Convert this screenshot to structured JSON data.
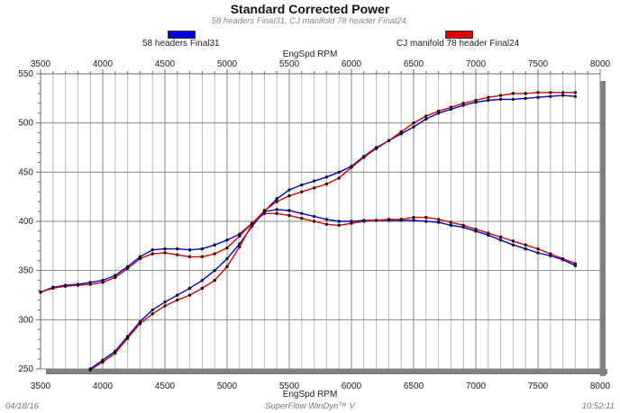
{
  "chart_data": {
    "type": "line",
    "title": "Standard Corrected Power",
    "subtitle": "58 headers Final31, CJ manifold 78 header Final24,",
    "xlabel": "EngSpd RPM",
    "ylabel": "",
    "xlim": [
      3500,
      8000
    ],
    "ylim": [
      250,
      550
    ],
    "xticks": [
      3500,
      4000,
      4500,
      5000,
      5500,
      6000,
      6500,
      7000,
      7500,
      8000
    ],
    "yticks": [
      250,
      300,
      350,
      400,
      450,
      500,
      550
    ],
    "grid": true,
    "legend_position": "top",
    "series": [
      {
        "name": "58 headers Final31",
        "color": "#0000e0",
        "x": [
          3500,
          3600,
          3700,
          3800,
          3900,
          4000,
          4100,
          4200,
          4300,
          4400,
          4500,
          4600,
          4700,
          4800,
          4900,
          5000,
          5100,
          5200,
          5300,
          5400,
          5500,
          5600,
          5700,
          5800,
          5900,
          6000,
          6100,
          6200,
          6300,
          6400,
          6500,
          6600,
          6700,
          6800,
          6900,
          7000,
          7100,
          7200,
          7300,
          7400,
          7500,
          7600,
          7700,
          7800
        ],
        "y": [
          328,
          333,
          335,
          336,
          338,
          340,
          345,
          354,
          364,
          371,
          372,
          372,
          371,
          372,
          376,
          381,
          387,
          398,
          410,
          412,
          411,
          408,
          405,
          402,
          400,
          400,
          401,
          401,
          401,
          401,
          401,
          400,
          399,
          396,
          394,
          390,
          386,
          381,
          376,
          372,
          368,
          365,
          361,
          355
        ]
      },
      {
        "name": "CJ manifold 78 header Final24",
        "color": "#e00000",
        "x": [
          3500,
          3600,
          3700,
          3800,
          3900,
          4000,
          4100,
          4200,
          4300,
          4400,
          4500,
          4600,
          4700,
          4800,
          4900,
          5000,
          5100,
          5200,
          5300,
          5400,
          5500,
          5600,
          5700,
          5800,
          5900,
          6000,
          6100,
          6200,
          6300,
          6400,
          6500,
          6600,
          6700,
          6800,
          6900,
          7000,
          7100,
          7200,
          7300,
          7400,
          7500,
          7600,
          7700,
          7800
        ],
        "y": [
          328,
          332,
          334,
          335,
          336,
          338,
          343,
          352,
          362,
          367,
          368,
          366,
          364,
          364,
          367,
          373,
          385,
          398,
          408,
          408,
          406,
          403,
          400,
          397,
          396,
          398,
          400,
          401,
          402,
          402,
          404,
          404,
          402,
          399,
          396,
          392,
          388,
          384,
          380,
          376,
          372,
          367,
          362,
          357
        ]
      },
      {
        "name": "58 headers Final31",
        "color": "#0000e0",
        "x": [
          3900,
          4000,
          4100,
          4200,
          4300,
          4400,
          4500,
          4600,
          4700,
          4800,
          4900,
          5000,
          5100,
          5200,
          5300,
          5400,
          5500,
          5600,
          5700,
          5800,
          5900,
          6000,
          6100,
          6200,
          6300,
          6400,
          6500,
          6600,
          6700,
          6800,
          6900,
          7000,
          7100,
          7200,
          7300,
          7400,
          7500,
          7600,
          7700,
          7800
        ],
        "y": [
          250,
          259,
          268,
          283,
          298,
          310,
          318,
          325,
          332,
          340,
          350,
          362,
          377,
          395,
          410,
          423,
          432,
          437,
          441,
          445,
          450,
          456,
          466,
          475,
          482,
          489,
          496,
          504,
          510,
          514,
          518,
          521,
          523,
          524,
          524,
          525,
          526,
          527,
          528,
          527
        ]
      },
      {
        "name": "CJ manifold 78 header Final24",
        "color": "#e00000",
        "x": [
          3900,
          4000,
          4100,
          4200,
          4300,
          4400,
          4500,
          4600,
          4700,
          4800,
          4900,
          5000,
          5100,
          5200,
          5300,
          5400,
          5500,
          5600,
          5700,
          5800,
          5900,
          6000,
          6100,
          6200,
          6300,
          6400,
          6500,
          6600,
          6700,
          6800,
          6900,
          7000,
          7100,
          7200,
          7300,
          7400,
          7500,
          7600,
          7700,
          7800
        ],
        "y": [
          249,
          257,
          266,
          281,
          296,
          306,
          314,
          320,
          325,
          332,
          340,
          354,
          374,
          397,
          411,
          420,
          426,
          430,
          434,
          438,
          444,
          455,
          465,
          474,
          482,
          491,
          500,
          507,
          512,
          516,
          520,
          523,
          526,
          528,
          530,
          530,
          531,
          531,
          531,
          531
        ]
      }
    ]
  },
  "legend": [
    "58 headers Final31",
    "CJ manifold 78 header Final24"
  ],
  "footer": {
    "date": "04/18/16",
    "software": "SuperFlow WinDyn™ V",
    "time": "10:52:11"
  }
}
